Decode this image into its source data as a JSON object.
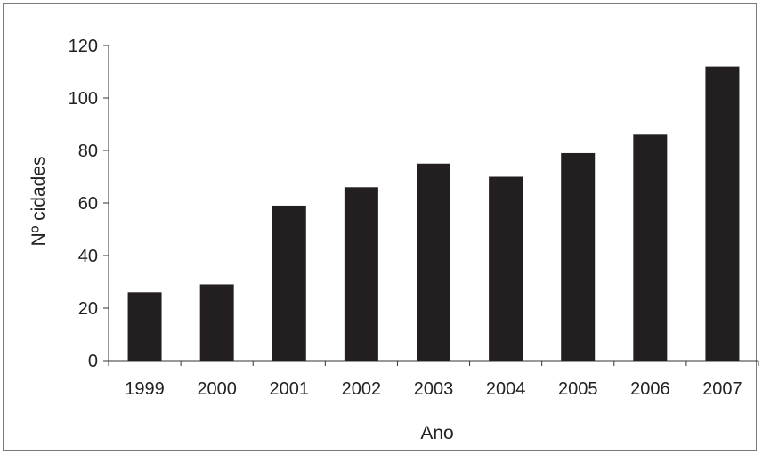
{
  "chart_data": {
    "type": "bar",
    "title": "",
    "xlabel": "Ano",
    "ylabel": "Nº cidades",
    "categories": [
      "1999",
      "2000",
      "2001",
      "2002",
      "2003",
      "2004",
      "2005",
      "2006",
      "2007"
    ],
    "values": [
      26,
      29,
      59,
      66,
      75,
      70,
      79,
      86,
      112
    ],
    "ylim": [
      0,
      120
    ],
    "yticks": [
      0,
      20,
      40,
      60,
      80,
      100,
      120
    ],
    "grid": false,
    "legend": "none",
    "bar_color": "#231f20"
  }
}
